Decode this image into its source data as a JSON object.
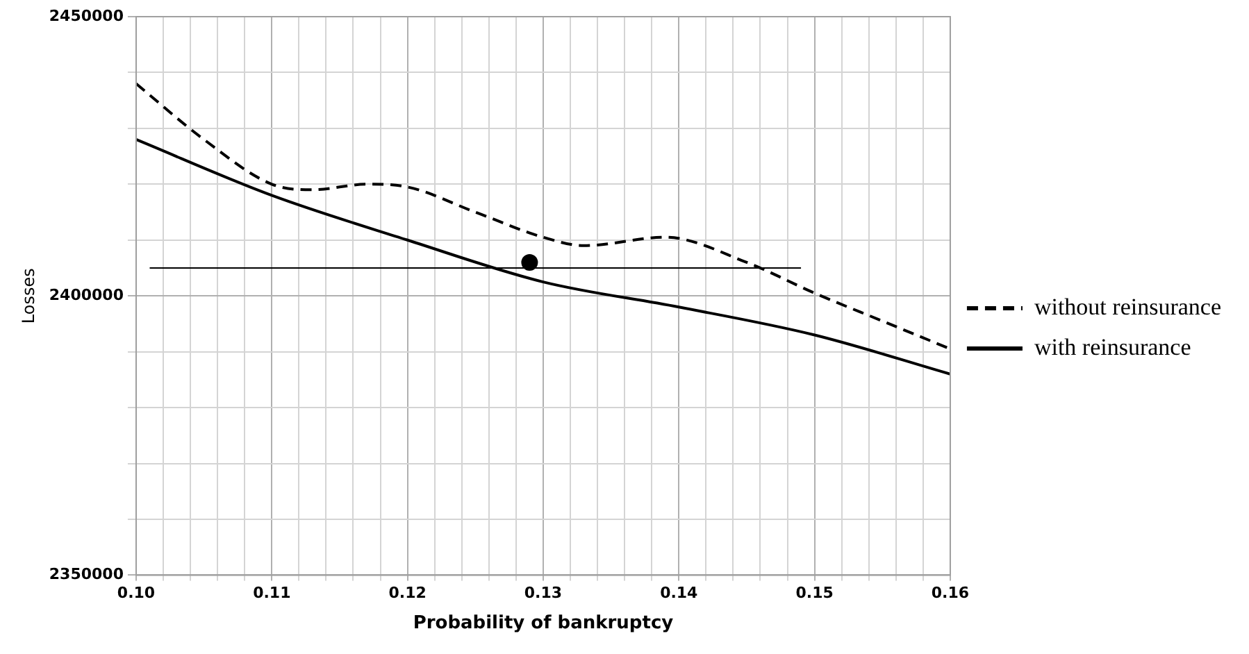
{
  "chart_data": {
    "type": "line",
    "xlabel": "Probability of bankruptcy",
    "ylabel": "Losses",
    "xlim": [
      0.1,
      0.16
    ],
    "xticks": [
      {
        "value": 0.1,
        "label": "0.10"
      },
      {
        "value": 0.102,
        "label": null
      },
      {
        "value": 0.104,
        "label": null
      },
      {
        "value": 0.106,
        "label": null
      },
      {
        "value": 0.108,
        "label": null
      },
      {
        "value": 0.11,
        "label": "0.11"
      },
      {
        "value": 0.112,
        "label": null
      },
      {
        "value": 0.114,
        "label": null
      },
      {
        "value": 0.116,
        "label": null
      },
      {
        "value": 0.118,
        "label": null
      },
      {
        "value": 0.12,
        "label": "0.12"
      },
      {
        "value": 0.122,
        "label": null
      },
      {
        "value": 0.124,
        "label": null
      },
      {
        "value": 0.126,
        "label": null
      },
      {
        "value": 0.128,
        "label": null
      },
      {
        "value": 0.13,
        "label": "0.13"
      },
      {
        "value": 0.132,
        "label": null
      },
      {
        "value": 0.134,
        "label": null
      },
      {
        "value": 0.136,
        "label": null
      },
      {
        "value": 0.138,
        "label": null
      },
      {
        "value": 0.14,
        "label": "0.14"
      },
      {
        "value": 0.142,
        "label": null
      },
      {
        "value": 0.144,
        "label": null
      },
      {
        "value": 0.146,
        "label": null
      },
      {
        "value": 0.148,
        "label": null
      },
      {
        "value": 0.15,
        "label": "0.15"
      },
      {
        "value": 0.152,
        "label": null
      },
      {
        "value": 0.154,
        "label": null
      },
      {
        "value": 0.156,
        "label": null
      },
      {
        "value": 0.158,
        "label": null
      },
      {
        "value": 0.16,
        "label": "0.16"
      }
    ],
    "ylim": [
      2350000,
      2450000
    ],
    "yticks": [
      2350000,
      {
        "value": 2360000,
        "label": null
      },
      {
        "value": 2370000,
        "label": null
      },
      {
        "value": 2380000,
        "label": null
      },
      {
        "value": 2390000,
        "label": null
      },
      2400000,
      {
        "value": 2410000,
        "label": null
      },
      {
        "value": 2420000,
        "label": null
      },
      {
        "value": 2430000,
        "label": null
      },
      {
        "value": 2440000,
        "label": null
      },
      2450000
    ],
    "grid": true,
    "legend": "right",
    "marker": "none",
    "series": [
      {
        "name": "without reinsurance",
        "color": "#000000",
        "line_style": "dashed",
        "x": [
          0.1,
          0.105,
          0.11,
          0.113,
          0.117,
          0.12,
          0.125,
          0.13,
          0.133,
          0.139,
          0.145,
          0.15,
          0.155,
          0.16
        ],
        "values": [
          2438000,
          2428000,
          2420000,
          2419000,
          2420000,
          2419500,
          2415000,
          2410500,
          2409000,
          2410500,
          2406000,
          2400500,
          2395500,
          2390500
        ]
      },
      {
        "name": "with reinsurance",
        "color": "#000000",
        "line_style": "solid",
        "x": [
          0.1,
          0.11,
          0.12,
          0.13,
          0.14,
          0.15,
          0.16
        ],
        "values": [
          2428000,
          2418000,
          2410000,
          2402500,
          2398000,
          2393000,
          2386000
        ]
      },
      {
        "color": "#000000",
        "line_style": "solid",
        "x": [
          0.101,
          0.149
        ],
        "values": [
          2405000,
          2405000
        ]
      },
      {
        "type": "scatter",
        "marker": "circle",
        "color": "#000000",
        "x": [
          0.129
        ],
        "values": [
          2406000
        ]
      }
    ]
  }
}
